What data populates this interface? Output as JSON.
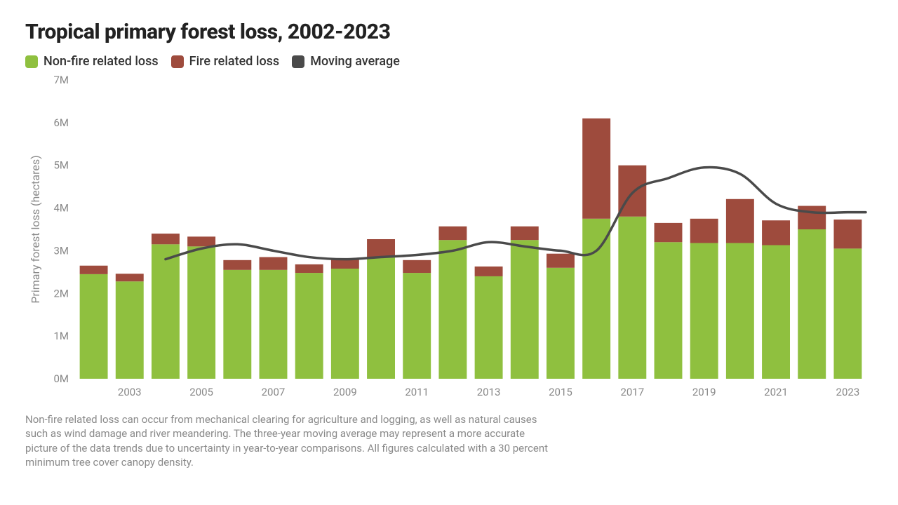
{
  "chart": {
    "type": "stacked-bar-with-line",
    "title": "Tropical primary forest loss, 2002-2023",
    "legend": {
      "nonfire": "Non-fire related loss",
      "fire": "Fire related loss",
      "moving_avg": "Moving average"
    },
    "colors": {
      "nonfire": "#8fc03f",
      "fire": "#9e4b3d",
      "moving_avg": "#4a4a4a",
      "grid": "#ffffff",
      "axis_text": "#888888",
      "background": "#ffffff",
      "title_text": "#111111"
    },
    "ylabel": "Primary forest loss (hectares)",
    "ylim": [
      0,
      7000000
    ],
    "ytick_step": 1000000,
    "ytick_labels": [
      "0M",
      "1M",
      "2M",
      "3M",
      "4M",
      "5M",
      "6M",
      "7M"
    ],
    "years": [
      2002,
      2003,
      2004,
      2005,
      2006,
      2007,
      2008,
      2009,
      2010,
      2011,
      2012,
      2013,
      2014,
      2015,
      2016,
      2017,
      2018,
      2019,
      2020,
      2021,
      2022,
      2023
    ],
    "nonfire_values": [
      2450000,
      2280000,
      3150000,
      3100000,
      2550000,
      2550000,
      2480000,
      2580000,
      2850000,
      2480000,
      3250000,
      2400000,
      3250000,
      2600000,
      3750000,
      3800000,
      3200000,
      3180000,
      3180000,
      3130000,
      3500000,
      3050000
    ],
    "fire_values": [
      200000,
      180000,
      250000,
      230000,
      230000,
      300000,
      200000,
      230000,
      420000,
      300000,
      320000,
      230000,
      320000,
      330000,
      2350000,
      1200000,
      450000,
      570000,
      1030000,
      580000,
      550000,
      680000
    ],
    "moving_avg": [
      null,
      null,
      2800000,
      3050000,
      3150000,
      3000000,
      2850000,
      2800000,
      2850000,
      2900000,
      3000000,
      3200000,
      3100000,
      3000000,
      3000000,
      4350000,
      4700000,
      4950000,
      4800000,
      4100000,
      3900000,
      3900000
    ],
    "x_tick_years": [
      2003,
      2005,
      2007,
      2009,
      2011,
      2013,
      2015,
      2017,
      2019,
      2021,
      2023
    ],
    "bar_width_ratio": 0.78,
    "line_width": 3.5,
    "title_fontsize": 30,
    "legend_fontsize": 18,
    "axis_fontsize": 15,
    "footnote_fontsize": 15,
    "footnote": "Non-fire related loss can occur from mechanical clearing for agriculture and logging, as well as natural causes such as wind damage and river meandering. The three-year moving average may represent a more accurate picture of the data trends due to uncertainty in year-to-year comparisons. All figures calculated with a 30 percent minimum tree cover canopy density."
  }
}
